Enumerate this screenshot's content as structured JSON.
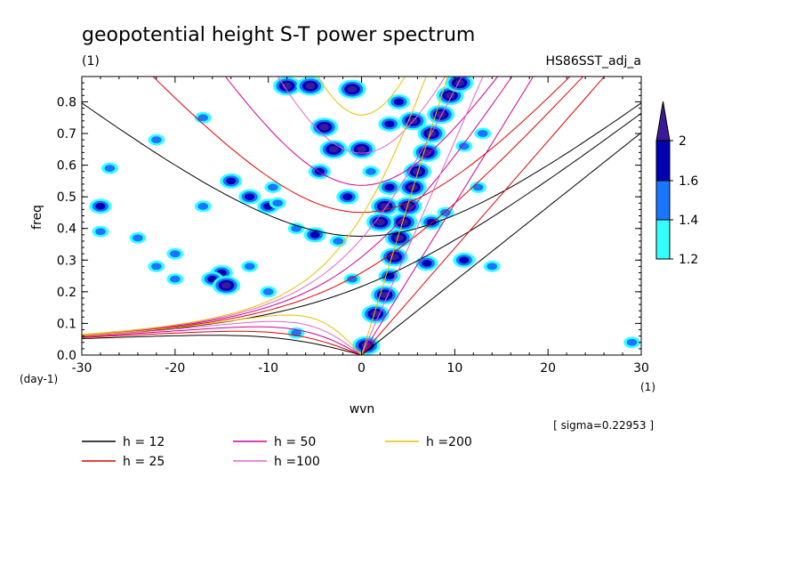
{
  "chart_data": {
    "type": "heatmap",
    "title": "geopotential height S-T power spectrum",
    "units_label": "(1)",
    "run_label": "HS86SST_adj_a",
    "xlabel": "wvn",
    "ylabel": "freq",
    "x_unit": "(1)",
    "y_unit": "(day-1)",
    "xlim": [
      -30,
      30
    ],
    "ylim": [
      0,
      0.88
    ],
    "x_ticks": [
      "-30",
      "-20",
      "-10",
      "0",
      "10",
      "20",
      "30"
    ],
    "x_tick_values": [
      -30,
      -20,
      -10,
      0,
      10,
      20,
      30
    ],
    "y_ticks": [
      "0.0",
      "0.1",
      "0.2",
      "0.3",
      "0.4",
      "0.5",
      "0.6",
      "0.7",
      "0.8"
    ],
    "y_tick_values": [
      0,
      0.1,
      0.2,
      0.3,
      0.4,
      0.5,
      0.6,
      0.7,
      0.8
    ],
    "annotation": "[ sigma=0.22953 ]",
    "colorbar": {
      "levels": [
        "1.2",
        "1.4",
        "1.6",
        "2"
      ],
      "level_values": [
        1.2,
        1.4,
        1.6,
        2.0
      ],
      "colors": [
        "#33ffff",
        "#1a75ff",
        "#0000b3",
        "#3a1a99"
      ]
    },
    "dispersion_curves": [
      {
        "name": "h = 12",
        "h": 12,
        "color": "#000000"
      },
      {
        "name": "h = 25",
        "h": 25,
        "color": "#e00000"
      },
      {
        "name": "h = 50",
        "h": 50,
        "color": "#cc0099"
      },
      {
        "name": "h =100",
        "h": 100,
        "color": "#dd66cc"
      },
      {
        "name": "h =200",
        "h": 200,
        "color": "#e6c000"
      }
    ],
    "power_regions": [
      {
        "x": 0.5,
        "y": 0.03,
        "level": 3
      },
      {
        "x": 1.5,
        "y": 0.13,
        "level": 3
      },
      {
        "x": 2.5,
        "y": 0.19,
        "level": 3
      },
      {
        "x": 3.0,
        "y": 0.25,
        "level": 2
      },
      {
        "x": 3.5,
        "y": 0.31,
        "level": 3
      },
      {
        "x": 4.0,
        "y": 0.37,
        "level": 3
      },
      {
        "x": 4.5,
        "y": 0.42,
        "level": 3
      },
      {
        "x": 5.0,
        "y": 0.47,
        "level": 3
      },
      {
        "x": 5.5,
        "y": 0.53,
        "level": 3
      },
      {
        "x": 6.0,
        "y": 0.58,
        "level": 3
      },
      {
        "x": 7.0,
        "y": 0.64,
        "level": 3
      },
      {
        "x": 7.5,
        "y": 0.7,
        "level": 3
      },
      {
        "x": 8.5,
        "y": 0.76,
        "level": 3
      },
      {
        "x": 9.5,
        "y": 0.82,
        "level": 3
      },
      {
        "x": 10.5,
        "y": 0.86,
        "level": 3
      },
      {
        "x": 2.5,
        "y": 0.47,
        "level": 3
      },
      {
        "x": 2.0,
        "y": 0.42,
        "level": 3
      },
      {
        "x": 3.0,
        "y": 0.53,
        "level": 2
      },
      {
        "x": 1.0,
        "y": 0.58,
        "level": 1
      },
      {
        "x": 0.0,
        "y": 0.65,
        "level": 3
      },
      {
        "x": -3.0,
        "y": 0.65,
        "level": 3
      },
      {
        "x": -4.0,
        "y": 0.72,
        "level": 3
      },
      {
        "x": 3.0,
        "y": 0.73,
        "level": 2
      },
      {
        "x": 5.5,
        "y": 0.74,
        "level": 3
      },
      {
        "x": 4.0,
        "y": 0.8,
        "level": 2
      },
      {
        "x": -1.0,
        "y": 0.84,
        "level": 3
      },
      {
        "x": -8.0,
        "y": 0.85,
        "level": 3
      },
      {
        "x": -5.5,
        "y": 0.85,
        "level": 3
      },
      {
        "x": -14.0,
        "y": 0.55,
        "level": 2
      },
      {
        "x": -12.0,
        "y": 0.5,
        "level": 2
      },
      {
        "x": -10.0,
        "y": 0.47,
        "level": 2
      },
      {
        "x": -15.0,
        "y": 0.26,
        "level": 2
      },
      {
        "x": -16.0,
        "y": 0.24,
        "level": 2
      },
      {
        "x": -20.0,
        "y": 0.24,
        "level": 1
      },
      {
        "x": -24.0,
        "y": 0.37,
        "level": 1
      },
      {
        "x": -20.0,
        "y": 0.32,
        "level": 1
      },
      {
        "x": -28.0,
        "y": 0.39,
        "level": 1
      },
      {
        "x": -28.0,
        "y": 0.47,
        "level": 2
      },
      {
        "x": -9.0,
        "y": 0.48,
        "level": 1
      },
      {
        "x": -5.0,
        "y": 0.38,
        "level": 2
      },
      {
        "x": -7.0,
        "y": 0.4,
        "level": 1
      },
      {
        "x": -14.5,
        "y": 0.22,
        "level": 3
      },
      {
        "x": -10.0,
        "y": 0.2,
        "level": 1
      },
      {
        "x": -4.5,
        "y": 0.58,
        "level": 2
      },
      {
        "x": -9.5,
        "y": 0.53,
        "level": 1
      },
      {
        "x": -1.5,
        "y": 0.5,
        "level": 2
      },
      {
        "x": -2.5,
        "y": 0.36,
        "level": 1
      },
      {
        "x": 7.5,
        "y": 0.42,
        "level": 2
      },
      {
        "x": 9.0,
        "y": 0.45,
        "level": 1
      },
      {
        "x": 11.0,
        "y": 0.3,
        "level": 2
      },
      {
        "x": 7.0,
        "y": 0.29,
        "level": 2
      },
      {
        "x": 14.0,
        "y": 0.28,
        "level": 1
      },
      {
        "x": -17.0,
        "y": 0.75,
        "level": 1
      },
      {
        "x": -22.0,
        "y": 0.68,
        "level": 1
      },
      {
        "x": -27.0,
        "y": 0.59,
        "level": 1
      },
      {
        "x": -7.0,
        "y": 0.07,
        "level": 1
      },
      {
        "x": -1.0,
        "y": 0.24,
        "level": 1
      },
      {
        "x": -12.0,
        "y": 0.28,
        "level": 1
      },
      {
        "x": 29.0,
        "y": 0.04,
        "level": 1
      },
      {
        "x": 11.0,
        "y": 0.66,
        "level": 1
      },
      {
        "x": 12.5,
        "y": 0.53,
        "level": 1
      },
      {
        "x": 13.0,
        "y": 0.7,
        "level": 1
      },
      {
        "x": -17.0,
        "y": 0.47,
        "level": 1
      },
      {
        "x": -22.0,
        "y": 0.28,
        "level": 1
      }
    ]
  }
}
